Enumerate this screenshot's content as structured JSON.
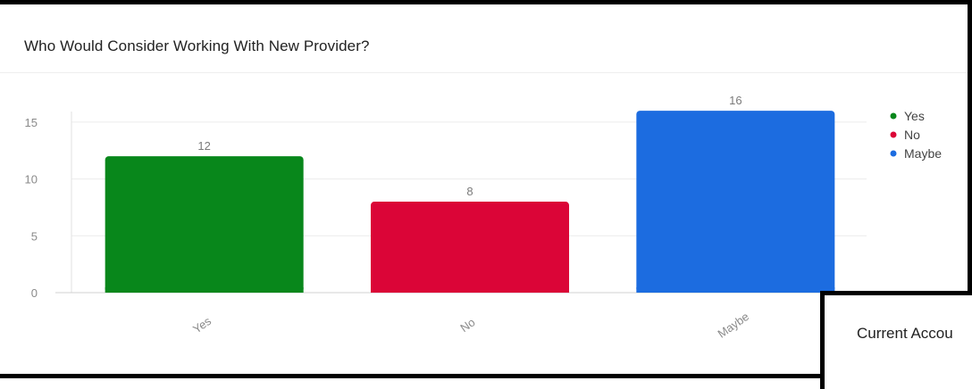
{
  "chart_data": {
    "type": "bar",
    "title": "Who Would Consider Working With New Provider?",
    "categories": [
      "Yes",
      "No",
      "Maybe"
    ],
    "values": [
      12,
      8,
      16
    ],
    "colors": [
      "#08871b",
      "#db0537",
      "#1c6ce0"
    ],
    "ylim": [
      0,
      17.5
    ],
    "yticks": [
      "0",
      "5",
      "10",
      "15"
    ],
    "data_labels": [
      "12",
      "8",
      "16"
    ],
    "legend": {
      "position": "top-right",
      "items": [
        "Yes",
        "No",
        "Maybe"
      ]
    },
    "grid": true,
    "xlabel": "",
    "ylabel": ""
  },
  "overlay_panel": {
    "title": "Current Accou"
  }
}
